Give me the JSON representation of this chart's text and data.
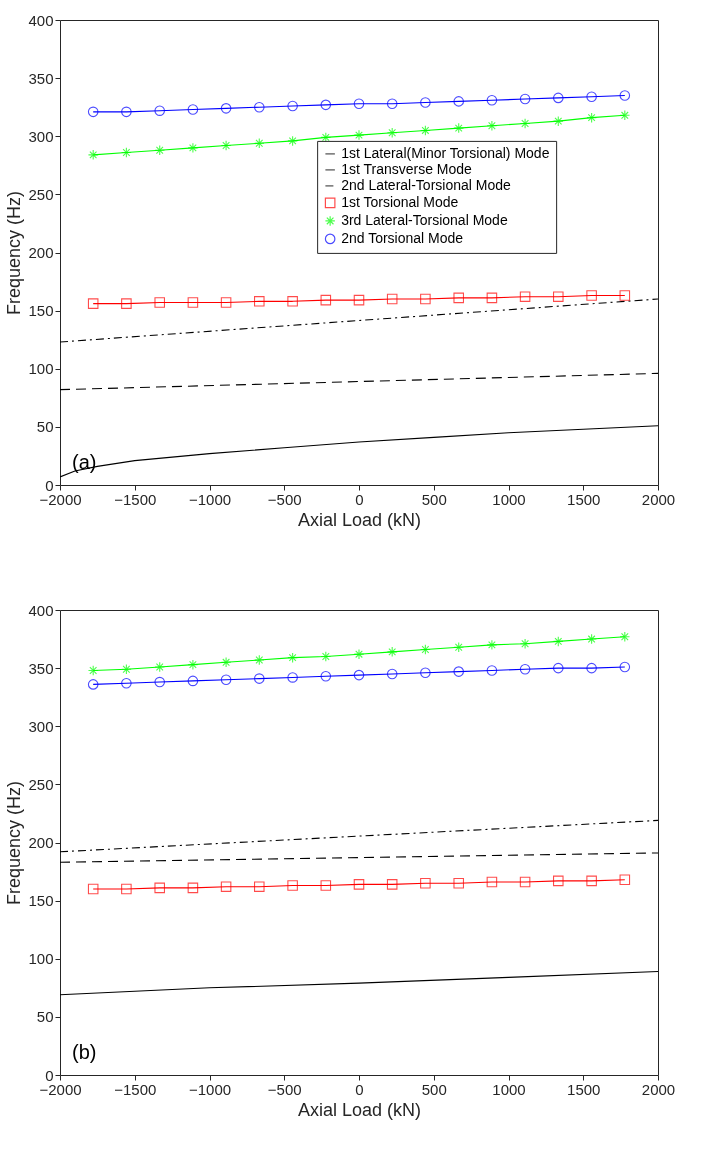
{
  "chart_data": [
    {
      "type": "line",
      "xlabel": "Axial Load (kN)",
      "ylabel": "Frequency (Hz)",
      "annotations": [
        "(a)"
      ],
      "xlim": [
        -2000,
        2000
      ],
      "ylim": [
        0,
        400
      ],
      "xticks": [
        -2000,
        -1500,
        -1000,
        -500,
        0,
        500,
        1000,
        1500,
        2000
      ],
      "yticks": [
        0,
        50,
        100,
        150,
        200,
        250,
        300,
        350,
        400
      ],
      "legend": "top right",
      "series": [
        {
          "name": "1st Lateral(Minor Torsional) Mode",
          "color": "#000000",
          "line_style": "solid",
          "marker": "none",
          "x": [
            -2000,
            -1900,
            -1750,
            -1500,
            -1000,
            -500,
            0,
            500,
            1000,
            1500,
            2000
          ],
          "values": [
            7,
            12,
            16,
            21,
            27,
            32,
            37,
            41,
            45,
            48,
            51
          ]
        },
        {
          "name": "1st Transverse Mode",
          "color": "#000000",
          "line_style": "dashed",
          "marker": "none",
          "x": [
            -2000,
            2000
          ],
          "values": [
            82,
            96
          ]
        },
        {
          "name": "2nd Lateral-Torsional Mode",
          "color": "#000000",
          "line_style": "dashdot",
          "marker": "none",
          "x": [
            -2000,
            2000
          ],
          "values": [
            123,
            160
          ]
        },
        {
          "name": "1st Torsional Mode",
          "color": "#ff0000",
          "line_style": "solid",
          "marker": "square",
          "x": [
            -1778,
            -1556,
            -1333,
            -1111,
            -889,
            -667,
            -444,
            -222,
            0,
            222,
            444,
            667,
            889,
            1111,
            1333,
            1556,
            1778
          ],
          "values": [
            156,
            156,
            157,
            157,
            157,
            158,
            158,
            159,
            159,
            160,
            160,
            161,
            161,
            162,
            162,
            163,
            163
          ]
        },
        {
          "name": "3rd Lateral-Torsional Mode",
          "color": "#00ff00",
          "line_style": "solid",
          "marker": "cross",
          "x": [
            -1778,
            -1556,
            -1333,
            -1111,
            -889,
            -667,
            -444,
            -222,
            0,
            222,
            444,
            667,
            889,
            1111,
            1333,
            1556,
            1778
          ],
          "values": [
            284,
            286,
            288,
            290,
            292,
            294,
            296,
            299,
            301,
            303,
            305,
            307,
            309,
            311,
            313,
            316,
            318
          ]
        },
        {
          "name": "2nd Torsional Mode",
          "color": "#0000ff",
          "line_style": "solid",
          "marker": "circle",
          "x": [
            -1778,
            -1556,
            -1333,
            -1111,
            -889,
            -667,
            -444,
            -222,
            0,
            222,
            444,
            667,
            889,
            1111,
            1333,
            1556,
            1778
          ],
          "values": [
            321,
            321,
            322,
            323,
            324,
            325,
            326,
            327,
            328,
            328,
            329,
            330,
            331,
            332,
            333,
            334,
            335
          ]
        }
      ]
    },
    {
      "type": "line",
      "xlabel": "Axial Load (kN)",
      "ylabel": "Frequency (Hz)",
      "annotations": [
        "(b)"
      ],
      "xlim": [
        -2000,
        2000
      ],
      "ylim": [
        0,
        400
      ],
      "xticks": [
        -2000,
        -1500,
        -1000,
        -500,
        0,
        500,
        1000,
        1500,
        2000
      ],
      "yticks": [
        0,
        50,
        100,
        150,
        200,
        250,
        300,
        350,
        400
      ],
      "legend": "top right",
      "series": [
        {
          "name": "1st Lateral(Minor Torsional) Mode",
          "color": "#000000",
          "line_style": "solid",
          "marker": "none",
          "x": [
            -2000,
            -1000,
            0,
            1000,
            2000
          ],
          "values": [
            69,
            75,
            79,
            84,
            89
          ]
        },
        {
          "name": "1st Torsional Mode",
          "color": "#ff0000",
          "line_style": "solid",
          "marker": "square",
          "x": [
            -1778,
            -1556,
            -1333,
            -1111,
            -889,
            -667,
            -444,
            -222,
            0,
            222,
            444,
            667,
            889,
            1111,
            1333,
            1556,
            1778
          ],
          "values": [
            160,
            160,
            161,
            161,
            162,
            162,
            163,
            163,
            164,
            164,
            165,
            165,
            166,
            166,
            167,
            167,
            168
          ]
        },
        {
          "name": "1st Transverse Mode",
          "color": "#000000",
          "line_style": "dashed",
          "marker": "none",
          "x": [
            -2000,
            2000
          ],
          "values": [
            183,
            191
          ]
        },
        {
          "name": "2nd Lateral-Torsional Mode",
          "color": "#000000",
          "line_style": "dashdot",
          "marker": "none",
          "x": [
            -2000,
            2000
          ],
          "values": [
            192,
            219
          ]
        },
        {
          "name": "2nd Torsional Mode",
          "color": "#0000ff",
          "line_style": "solid",
          "marker": "circle",
          "x": [
            -1778,
            -1556,
            -1333,
            -1111,
            -889,
            -667,
            -444,
            -222,
            0,
            222,
            444,
            667,
            889,
            1111,
            1333,
            1556,
            1778
          ],
          "values": [
            336,
            337,
            338,
            339,
            340,
            341,
            342,
            343,
            344,
            345,
            346,
            347,
            348,
            349,
            350,
            350,
            351
          ]
        },
        {
          "name": "3rd Lateral-Torsional Mode",
          "color": "#00ff00",
          "line_style": "solid",
          "marker": "cross",
          "x": [
            -1778,
            -1556,
            -1333,
            -1111,
            -889,
            -667,
            -444,
            -222,
            0,
            222,
            444,
            667,
            889,
            1111,
            1333,
            1556,
            1778
          ],
          "values": [
            348,
            349,
            351,
            353,
            355,
            357,
            359,
            360,
            362,
            364,
            366,
            368,
            370,
            371,
            373,
            375,
            377
          ]
        }
      ]
    }
  ]
}
